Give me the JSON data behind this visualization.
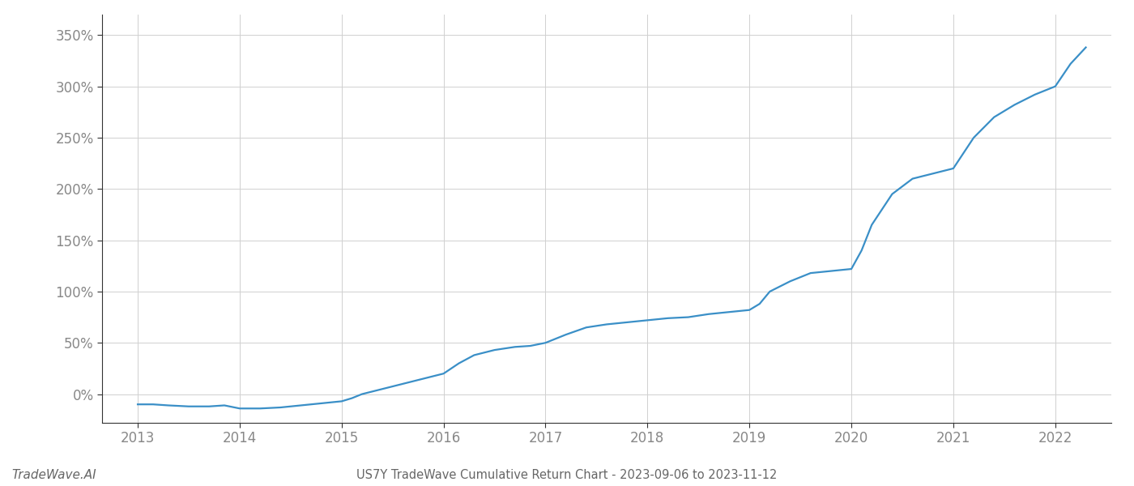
{
  "title": "US7Y TradeWave Cumulative Return Chart - 2023-09-06 to 2023-11-12",
  "watermark": "TradeWave.AI",
  "line_color": "#3a8fc7",
  "background_color": "#ffffff",
  "grid_color": "#d0d0d0",
  "spine_color": "#333333",
  "x_values": [
    2013.0,
    2013.15,
    2013.3,
    2013.5,
    2013.7,
    2013.85,
    2014.0,
    2014.2,
    2014.4,
    2014.6,
    2014.8,
    2015.0,
    2015.1,
    2015.2,
    2015.4,
    2015.6,
    2015.8,
    2016.0,
    2016.15,
    2016.3,
    2016.5,
    2016.7,
    2016.85,
    2017.0,
    2017.2,
    2017.4,
    2017.6,
    2017.8,
    2018.0,
    2018.2,
    2018.4,
    2018.6,
    2018.8,
    2019.0,
    2019.1,
    2019.2,
    2019.4,
    2019.6,
    2019.8,
    2020.0,
    2020.1,
    2020.2,
    2020.4,
    2020.6,
    2020.8,
    2021.0,
    2021.2,
    2021.4,
    2021.6,
    2021.8,
    2022.0,
    2022.15,
    2022.3
  ],
  "y_values": [
    -10,
    -10,
    -11,
    -12,
    -12,
    -11,
    -14,
    -14,
    -13,
    -11,
    -9,
    -7,
    -4,
    0,
    5,
    10,
    15,
    20,
    30,
    38,
    43,
    46,
    47,
    50,
    58,
    65,
    68,
    70,
    72,
    74,
    75,
    78,
    80,
    82,
    88,
    100,
    110,
    118,
    120,
    122,
    140,
    165,
    195,
    210,
    215,
    220,
    250,
    270,
    282,
    292,
    300,
    322,
    338
  ],
  "xlim": [
    2012.65,
    2022.55
  ],
  "ylim": [
    -28,
    370
  ],
  "yticks": [
    0,
    50,
    100,
    150,
    200,
    250,
    300,
    350
  ],
  "xticks": [
    2013,
    2014,
    2015,
    2016,
    2017,
    2018,
    2019,
    2020,
    2021,
    2022
  ],
  "line_width": 1.6,
  "title_fontsize": 10.5,
  "tick_fontsize": 12,
  "watermark_fontsize": 11,
  "label_color": "#888888",
  "tick_color": "#888888"
}
